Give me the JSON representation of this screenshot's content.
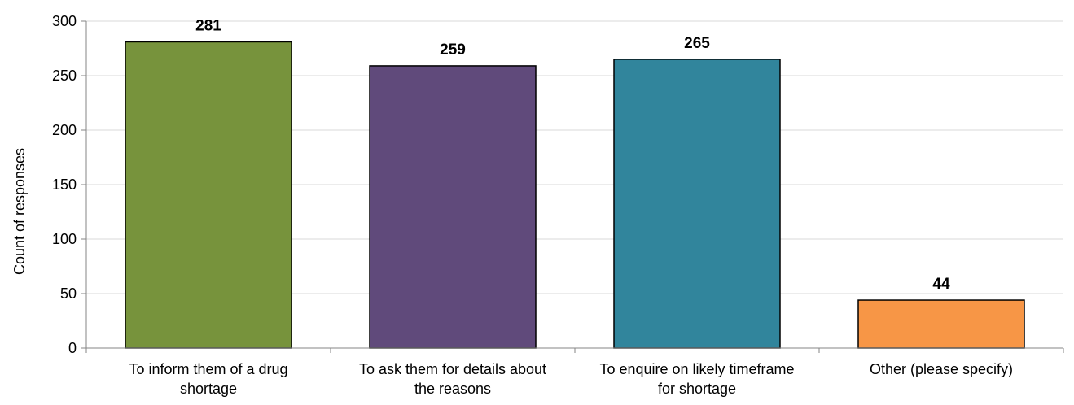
{
  "chart_data": {
    "type": "bar",
    "categories": [
      [
        "To inform them of a drug",
        "shortage"
      ],
      [
        "To ask them for details about",
        "the reasons"
      ],
      [
        "To enquire on likely timeframe",
        "for shortage"
      ],
      [
        "Other (please specify)"
      ]
    ],
    "values": [
      281,
      259,
      265,
      44
    ],
    "data_labels": [
      "281",
      "259",
      "265",
      "44"
    ],
    "colors": [
      "#77933c",
      "#604a7b",
      "#31859c",
      "#f79646"
    ],
    "ylabel": "Count of responses",
    "xlabel": "",
    "ylim": [
      0,
      300
    ],
    "yticks": [
      0,
      50,
      100,
      150,
      200,
      250,
      300
    ],
    "grid": true,
    "legend": "none"
  }
}
